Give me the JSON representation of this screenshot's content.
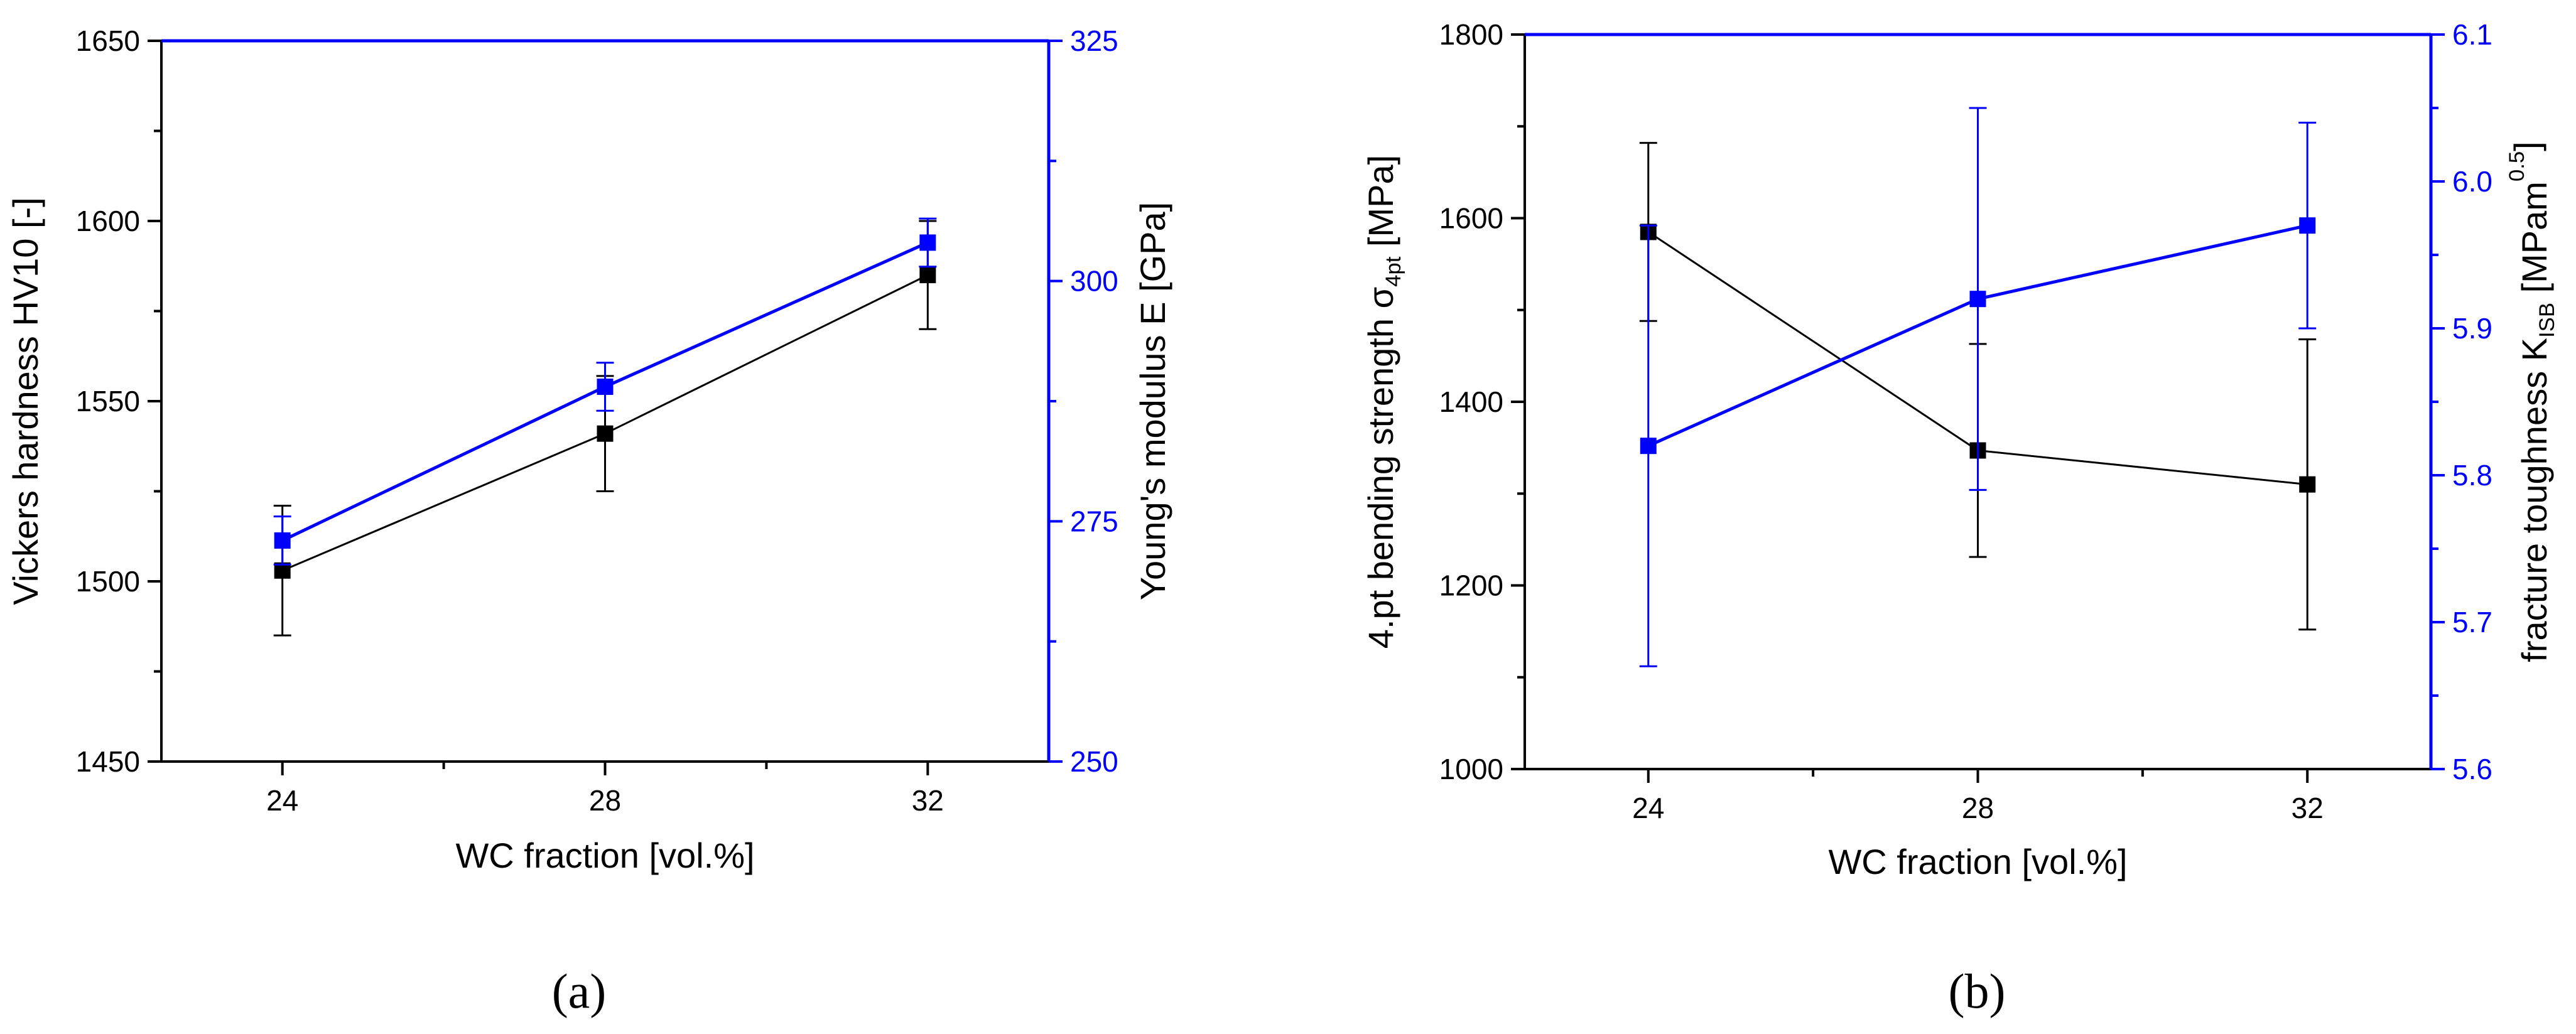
{
  "colors": {
    "left_series": "#000000",
    "right_series": "#0000ff",
    "background": "#ffffff"
  },
  "chart_data": [
    {
      "panel": "a",
      "caption": "(a)",
      "type": "line",
      "title": "",
      "xlabel": "WC fraction [vol.%]",
      "x": [
        24,
        28,
        32
      ],
      "xticks": [
        24,
        28,
        32
      ],
      "xlim": [
        22.5,
        33.5
      ],
      "grid": false,
      "legend": "none",
      "y_left": {
        "label": "Vickers hardness HV10 [-]",
        "label_parts": [
          "Vickers hardness HV10 [-]"
        ],
        "lim": [
          1450,
          1650
        ],
        "ticks": [
          1450,
          1500,
          1550,
          1600,
          1650
        ],
        "color": "#000000"
      },
      "y_right": {
        "label": "Young's modulus E [GPa]",
        "label_parts": [
          "Young's modulus E [GPa]"
        ],
        "lim": [
          250,
          325
        ],
        "ticks": [
          250,
          275,
          300,
          325
        ],
        "color": "#0000ff"
      },
      "series": [
        {
          "axis": "left",
          "color": "#000000",
          "values": [
            1503,
            1541,
            1585
          ],
          "error": [
            18,
            16,
            15
          ]
        },
        {
          "axis": "right",
          "color": "#0000ff",
          "values": [
            273,
            289,
            304
          ],
          "error": [
            2.5,
            2.5,
            2.5
          ]
        }
      ]
    },
    {
      "panel": "b",
      "caption": "(b)",
      "type": "line",
      "title": "",
      "xlabel": "WC fraction [vol.%]",
      "x": [
        24,
        28,
        32
      ],
      "xticks": [
        24,
        28,
        32
      ],
      "xlim": [
        22.5,
        33.5
      ],
      "grid": false,
      "legend": "none",
      "y_left": {
        "label": "4.pt bending strength σ4pt [MPa]",
        "label_parts": [
          "4.pt bending strength σ",
          "4pt",
          " [MPa]"
        ],
        "lim": [
          1000,
          1800
        ],
        "ticks": [
          1000,
          1200,
          1400,
          1600,
          1800
        ],
        "color": "#000000"
      },
      "y_right": {
        "label": "fracture toughness KISB [MPam0.5]",
        "label_parts": [
          "fracture toughness K",
          "ISB",
          " [MPam",
          "0.5",
          "]"
        ],
        "lim": [
          5.6,
          6.1
        ],
        "ticks": [
          "5.6",
          "5.7",
          "5.8",
          "5.9",
          "6.0",
          "6.1"
        ],
        "color": "#0000ff"
      },
      "series": [
        {
          "axis": "left",
          "color": "#000000",
          "values": [
            1585,
            1347,
            1310
          ],
          "error": [
            97,
            116,
            158
          ]
        },
        {
          "axis": "right",
          "color": "#0000ff",
          "values": [
            5.82,
            5.92,
            5.97
          ],
          "error": [
            0.15,
            0.13,
            0.07
          ]
        }
      ]
    }
  ]
}
